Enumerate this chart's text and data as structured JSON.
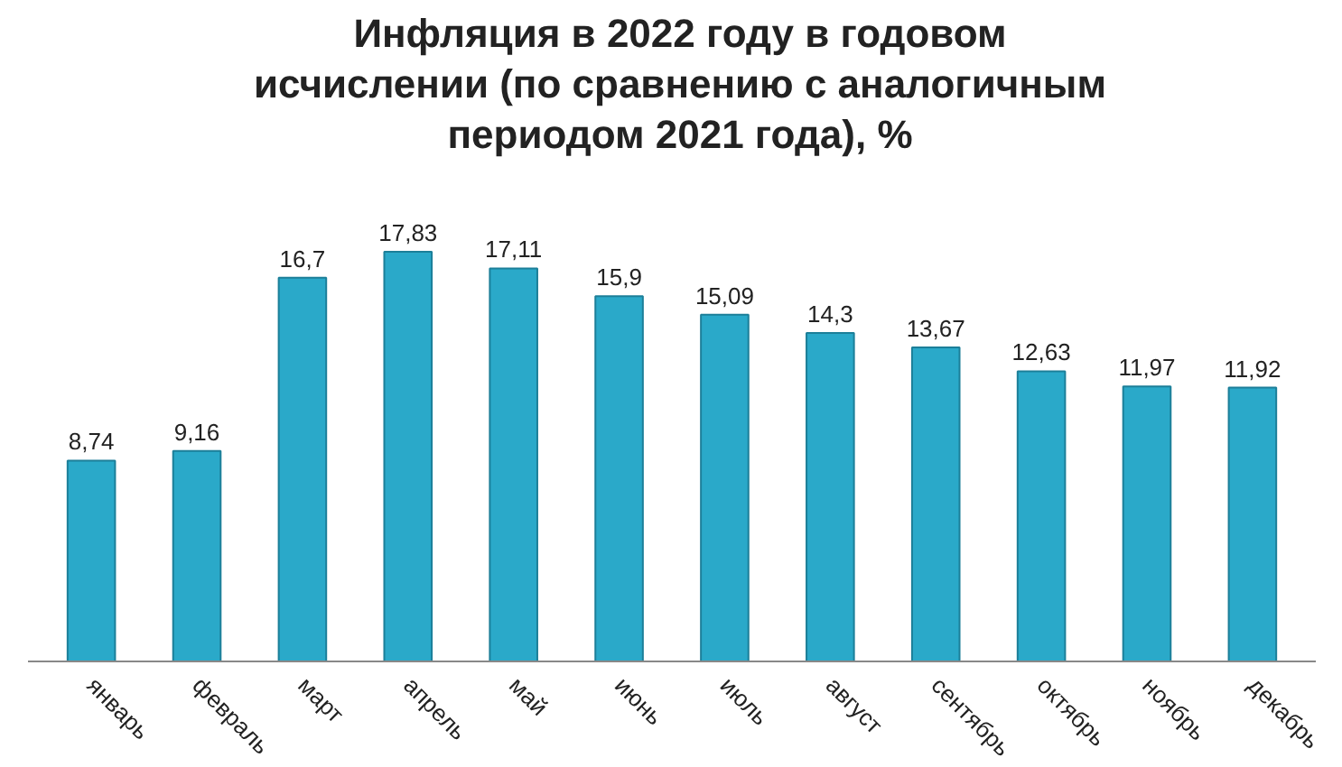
{
  "chart_data": {
    "type": "bar",
    "title": "Инфляция в 2022 году в годовом исчислении (по сравнению с аналогичным периодом 2021 года), %",
    "categories": [
      "январь",
      "февраль",
      "март",
      "апрель",
      "май",
      "июнь",
      "июль",
      "август",
      "сентябрь",
      "октябрь",
      "ноябрь",
      "декабрь"
    ],
    "values": [
      8.74,
      9.16,
      16.7,
      17.83,
      17.11,
      15.9,
      15.09,
      14.3,
      13.67,
      12.63,
      11.97,
      11.92
    ],
    "value_labels": [
      "8,74",
      "9,16",
      "16,7",
      "17,83",
      "17,11",
      "15,9",
      "15,09",
      "14,3",
      "13,67",
      "12,63",
      "11,97",
      "11,92"
    ],
    "color": "#2aa9c9",
    "grid": false
  }
}
